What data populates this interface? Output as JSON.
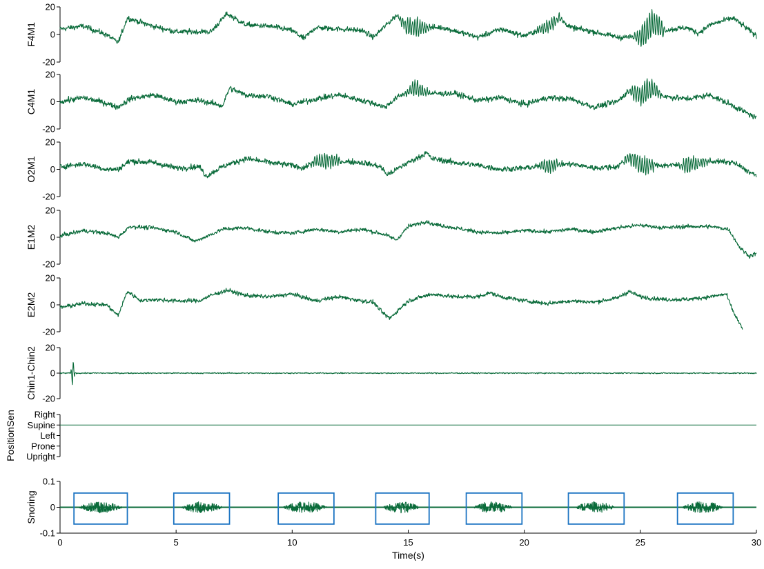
{
  "chart_data": {
    "type": "line",
    "x_range": [
      0,
      30
    ],
    "x_ticks": [
      0,
      5,
      10,
      15,
      20,
      25,
      30
    ],
    "xlabel": "Time(s)",
    "line_color": "#0a6b3a",
    "box_color": "#1a73c2",
    "panels": [
      {
        "name": "F4M1",
        "ylim": [
          -20,
          20
        ],
        "yticks": [
          -20,
          0,
          20
        ],
        "ytick_labels": [
          "-20",
          "0",
          "20"
        ],
        "signal": {
          "baseline": [
            [
              0,
              4
            ],
            [
              1,
              6
            ],
            [
              2,
              0
            ],
            [
              2.5,
              -6
            ],
            [
              2.9,
              12
            ],
            [
              4,
              6
            ],
            [
              5,
              2
            ],
            [
              6.5,
              2
            ],
            [
              7.2,
              15
            ],
            [
              8,
              7
            ],
            [
              9,
              6
            ],
            [
              10,
              3
            ],
            [
              10.5,
              -3
            ],
            [
              11,
              5
            ],
            [
              13,
              3
            ],
            [
              13.5,
              -2
            ],
            [
              14,
              6
            ],
            [
              14.5,
              14
            ],
            [
              15,
              5
            ],
            [
              16.5,
              5
            ],
            [
              18,
              -2
            ],
            [
              19,
              4
            ],
            [
              20,
              -1
            ],
            [
              21,
              6
            ],
            [
              21.5,
              12
            ],
            [
              22,
              5
            ],
            [
              23,
              2
            ],
            [
              24,
              -2
            ],
            [
              25,
              -2
            ],
            [
              25.5,
              9
            ],
            [
              26,
              3
            ],
            [
              27,
              5
            ],
            [
              27.5,
              1
            ],
            [
              28,
              7
            ],
            [
              29,
              12
            ],
            [
              30,
              -1
            ]
          ],
          "noise": 2.2,
          "bursts": [
            [
              14.5,
              16,
              6
            ],
            [
              24.6,
              26.2,
              9
            ],
            [
              20.4,
              21.8,
              4
            ]
          ]
        }
      },
      {
        "name": "C4M1",
        "ylim": [
          -20,
          20
        ],
        "yticks": [
          -20,
          0,
          20
        ],
        "ytick_labels": [
          "-20",
          "0",
          "20"
        ],
        "signal": {
          "baseline": [
            [
              0,
              0
            ],
            [
              1,
              3
            ],
            [
              2,
              -1
            ],
            [
              2.5,
              -4
            ],
            [
              3,
              2
            ],
            [
              4,
              5
            ],
            [
              5,
              0
            ],
            [
              6,
              1
            ],
            [
              7,
              -3
            ],
            [
              7.3,
              10
            ],
            [
              8,
              5
            ],
            [
              9,
              4
            ],
            [
              10,
              -2
            ],
            [
              11,
              2
            ],
            [
              12,
              5
            ],
            [
              13.5,
              -1
            ],
            [
              14,
              -4
            ],
            [
              14.5,
              3
            ],
            [
              15.3,
              10
            ],
            [
              16,
              6
            ],
            [
              17,
              6
            ],
            [
              18,
              1
            ],
            [
              19,
              3
            ],
            [
              20,
              -2
            ],
            [
              21,
              3
            ],
            [
              22,
              2
            ],
            [
              23,
              -4
            ],
            [
              24,
              0
            ],
            [
              24.5,
              8
            ],
            [
              25,
              5
            ],
            [
              25.5,
              10
            ],
            [
              26,
              4
            ],
            [
              27,
              2
            ],
            [
              28,
              5
            ],
            [
              29,
              -3
            ],
            [
              30,
              -12
            ]
          ],
          "noise": 2.3,
          "bursts": [
            [
              14.8,
              16,
              5
            ],
            [
              24.4,
              26,
              7
            ]
          ]
        }
      },
      {
        "name": "O2M1",
        "ylim": [
          -20,
          20
        ],
        "yticks": [
          -20,
          0,
          20
        ],
        "ytick_labels": [
          "-20",
          "0",
          "20"
        ],
        "signal": {
          "baseline": [
            [
              0,
              2
            ],
            [
              1,
              4
            ],
            [
              2,
              0
            ],
            [
              2.5,
              0
            ],
            [
              3,
              6
            ],
            [
              4,
              5
            ],
            [
              5,
              1
            ],
            [
              6,
              2
            ],
            [
              6.3,
              -5
            ],
            [
              7,
              2
            ],
            [
              8,
              8
            ],
            [
              9,
              5
            ],
            [
              10,
              3
            ],
            [
              10.5,
              1
            ],
            [
              11,
              6
            ],
            [
              12,
              6
            ],
            [
              13,
              5
            ],
            [
              13.8,
              2
            ],
            [
              14.1,
              -4
            ],
            [
              15,
              5
            ],
            [
              15.8,
              12
            ],
            [
              16,
              8
            ],
            [
              17,
              5
            ],
            [
              18,
              3
            ],
            [
              19,
              0
            ],
            [
              20,
              1
            ],
            [
              21,
              3
            ],
            [
              22,
              4
            ],
            [
              23,
              1
            ],
            [
              24,
              2
            ],
            [
              24.5,
              9
            ],
            [
              25,
              3
            ],
            [
              26,
              3
            ],
            [
              27,
              3
            ],
            [
              28,
              6
            ],
            [
              29,
              5
            ],
            [
              30,
              -5
            ]
          ],
          "noise": 2.3,
          "bursts": [
            [
              10.7,
              12.2,
              5
            ],
            [
              24.2,
              25.8,
              6
            ],
            [
              26.5,
              28,
              5
            ],
            [
              20.5,
              21.7,
              4
            ]
          ]
        }
      },
      {
        "name": "E1M2",
        "ylim": [
          -20,
          20
        ],
        "yticks": [
          -20,
          0,
          20
        ],
        "ytick_labels": [
          "-20",
          "0",
          "20"
        ],
        "signal": {
          "baseline": [
            [
              0,
              1
            ],
            [
              1,
              5
            ],
            [
              2,
              3
            ],
            [
              2.5,
              0
            ],
            [
              3,
              8
            ],
            [
              4,
              7
            ],
            [
              5,
              4
            ],
            [
              5.8,
              -3
            ],
            [
              6.5,
              2
            ],
            [
              7,
              6
            ],
            [
              8,
              7
            ],
            [
              9,
              4
            ],
            [
              10,
              3
            ],
            [
              11,
              6
            ],
            [
              12,
              4
            ],
            [
              13,
              6
            ],
            [
              14,
              2
            ],
            [
              14.5,
              -2
            ],
            [
              15,
              8
            ],
            [
              15.8,
              12
            ],
            [
              16,
              10
            ],
            [
              17,
              7
            ],
            [
              18,
              4
            ],
            [
              19,
              3
            ],
            [
              20,
              5
            ],
            [
              21,
              4
            ],
            [
              22,
              6
            ],
            [
              23,
              4
            ],
            [
              24,
              7
            ],
            [
              25,
              9
            ],
            [
              26,
              7
            ],
            [
              27,
              8
            ],
            [
              28,
              8
            ],
            [
              28.8,
              6
            ],
            [
              29.3,
              -8
            ],
            [
              29.7,
              -14
            ],
            [
              30,
              -12
            ]
          ],
          "noise": 1.6,
          "bursts": []
        }
      },
      {
        "name": "E2M2",
        "ylim": [
          -20,
          20
        ],
        "yticks": [
          -20,
          0,
          20
        ],
        "ytick_labels": [
          "-20",
          "0",
          "20"
        ],
        "signal": {
          "baseline": [
            [
              0,
              -2
            ],
            [
              1,
              1
            ],
            [
              2,
              0
            ],
            [
              2.5,
              -8
            ],
            [
              2.9,
              10
            ],
            [
              3.5,
              3
            ],
            [
              4,
              4
            ],
            [
              5,
              3
            ],
            [
              6,
              3
            ],
            [
              6.5,
              7
            ],
            [
              7.2,
              11
            ],
            [
              8,
              7
            ],
            [
              9,
              6
            ],
            [
              10,
              8
            ],
            [
              11,
              3
            ],
            [
              12,
              6
            ],
            [
              13,
              3
            ],
            [
              13.5,
              2
            ],
            [
              13.9,
              -6
            ],
            [
              14.2,
              -10
            ],
            [
              15,
              3
            ],
            [
              16,
              8
            ],
            [
              17,
              6
            ],
            [
              18,
              6
            ],
            [
              18.5,
              9
            ],
            [
              19,
              6
            ],
            [
              20,
              3
            ],
            [
              21,
              1
            ],
            [
              22,
              3
            ],
            [
              23,
              2
            ],
            [
              24,
              5
            ],
            [
              24.5,
              10
            ],
            [
              25,
              6
            ],
            [
              26,
              4
            ],
            [
              27,
              4
            ],
            [
              28,
              6
            ],
            [
              28.7,
              8
            ],
            [
              29,
              -5
            ],
            [
              29.4,
              -18
            ]
          ],
          "noise": 1.7,
          "bursts": []
        }
      },
      {
        "name": "Chin1-Chin2",
        "ylim": [
          -20,
          20
        ],
        "yticks": [
          -20,
          0,
          20
        ],
        "ytick_labels": [
          "-20",
          "0",
          "20"
        ],
        "signal": {
          "baseline": [
            [
              0,
              0
            ],
            [
              30,
              0
            ]
          ],
          "noise": 0.5,
          "bursts": [],
          "spike": [
            0.55,
            16
          ]
        }
      },
      {
        "name": "PositionSen",
        "ylim": [
          0,
          4
        ],
        "yticks": [
          0,
          1,
          2,
          3,
          4
        ],
        "ytick_labels": [
          "Upright",
          "Prone",
          "Left",
          "Supine",
          "Right"
        ],
        "signal": {
          "constant": 3
        }
      },
      {
        "name": "Snoring",
        "ylim": [
          -0.1,
          0.1
        ],
        "yticks": [
          -0.1,
          0,
          0.1
        ],
        "ytick_labels": [
          "-0.1",
          "0",
          "0.1"
        ],
        "signal": {
          "baseline": [
            [
              0,
              0
            ],
            [
              30,
              0
            ]
          ],
          "noise": 0.0008,
          "bursts": [],
          "snore_events": [
            [
              0.8,
              2.7
            ],
            [
              5.2,
              7.0
            ],
            [
              9.6,
              11.5
            ],
            [
              13.9,
              15.5
            ],
            [
              17.8,
              19.5
            ],
            [
              22.2,
              23.9
            ],
            [
              26.8,
              28.6
            ]
          ],
          "snore_amp": 0.022
        },
        "boxes": [
          [
            0.6,
            2.9
          ],
          [
            4.9,
            7.3
          ],
          [
            9.4,
            11.8
          ],
          [
            13.6,
            15.9
          ],
          [
            17.5,
            19.9
          ],
          [
            21.9,
            24.3
          ],
          [
            26.6,
            29.0
          ]
        ]
      }
    ]
  }
}
